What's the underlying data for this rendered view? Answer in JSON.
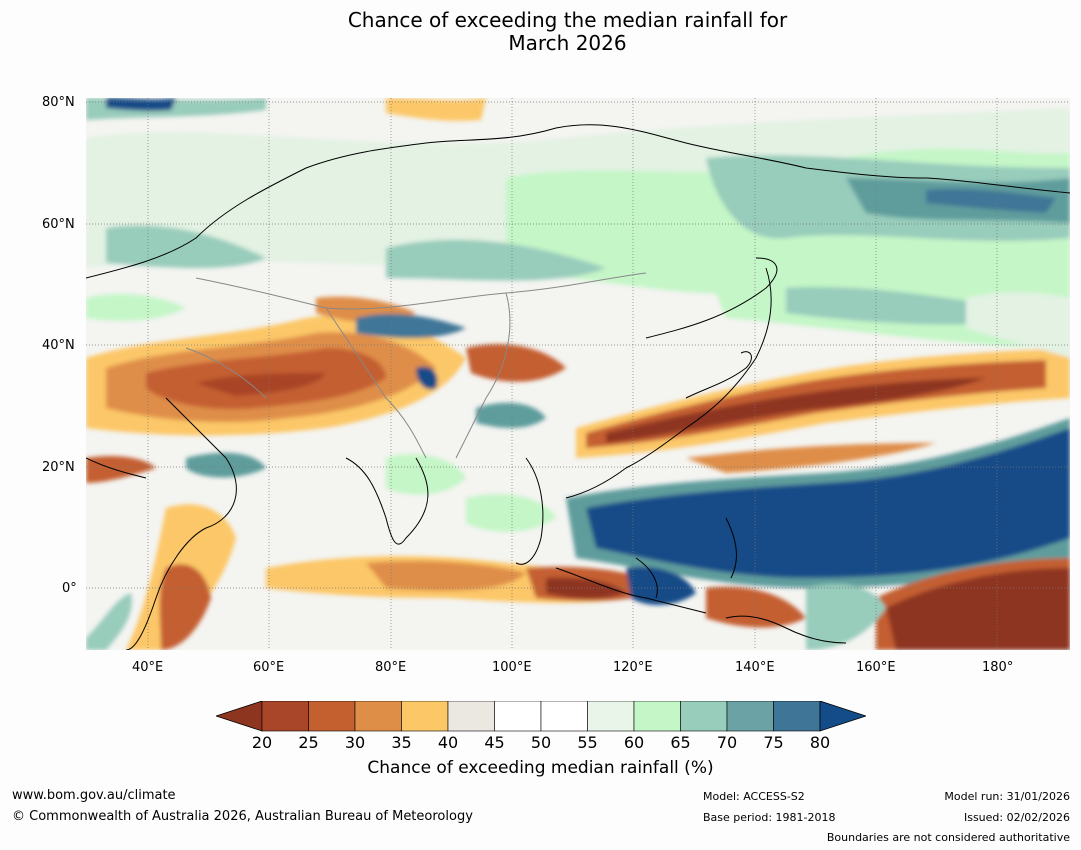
{
  "title_line1": "Chance of exceeding the median rainfall for",
  "title_line2": "March 2026",
  "map": {
    "extent_lon": [
      30,
      192
    ],
    "extent_lat": [
      -10,
      80
    ],
    "lat_labels": [
      "80°N",
      "60°N",
      "40°N",
      "20°N",
      "0°"
    ],
    "lon_labels": [
      "40°E",
      "60°E",
      "80°E",
      "100°E",
      "120°E",
      "140°E",
      "160°E",
      "180°"
    ],
    "colors": {
      "very_dry": "#8e3520",
      "dry": "#c45f30",
      "somewhat_dry": "#f8c769",
      "neutral": "#ebe8e2",
      "somewhat_wet": "#c4f6c7",
      "wet": "#5f9d9c",
      "very_wet": "#134c88"
    }
  },
  "colorbar": {
    "ticks": [
      "20",
      "25",
      "30",
      "35",
      "40",
      "45",
      "50",
      "55",
      "60",
      "65",
      "70",
      "75",
      "80"
    ],
    "colors": [
      "#8e3520",
      "#a94528",
      "#c45f30",
      "#df8e48",
      "#fcc767",
      "#ebe8e2",
      "#ffffff",
      "#ffffff",
      "#e8f5e8",
      "#c4f6c7",
      "#98ccbb",
      "#6aa2a5",
      "#3f7697",
      "#134c88"
    ],
    "label": "Chance of exceeding median rainfall (%)"
  },
  "footer": {
    "website": "www.bom.gov.au/climate",
    "copyright": "© Commonwealth of Australia 2026, Australian Bureau of Meteorology",
    "model": "Model: ACCESS-S2",
    "base_period": "Base period: 1981-2018",
    "model_run": "Model run: 31/01/2026",
    "issued": "Issued: 02/02/2026",
    "disclaimer": "Boundaries are not considered authoritative"
  }
}
